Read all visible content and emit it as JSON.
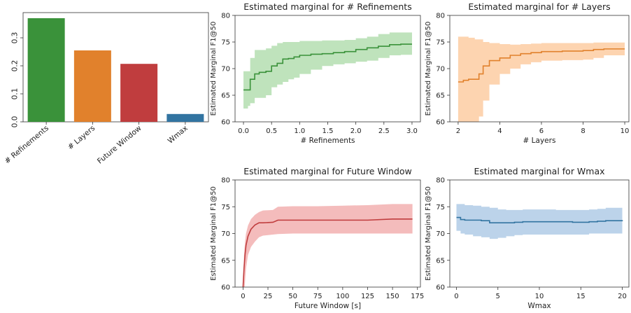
{
  "colors": {
    "green": "#3a923a",
    "orange": "#e1812c",
    "red": "#c03d3e",
    "blue": "#3274a1",
    "green_band": "#bfe3bc",
    "orange_band": "#fdd4b0",
    "red_band": "#f4bcbc",
    "blue_band": "#bcd3ea"
  },
  "chart_data": [
    {
      "type": "bar",
      "categories": [
        "# Refinements",
        "# Layers",
        "Future Window",
        "Wmax"
      ],
      "values": [
        0.37,
        0.255,
        0.207,
        0.028
      ],
      "colors": [
        "#3a923a",
        "#e1812c",
        "#c03d3e",
        "#3274a1"
      ],
      "ylim": [
        0,
        0.39
      ],
      "yticks": [
        0.0,
        0.1,
        0.2,
        0.3
      ],
      "yticklabels": [
        "0.0",
        "0.1",
        "0.2",
        "0.3"
      ],
      "title": "",
      "xlabel": "",
      "ylabel": ""
    },
    {
      "type": "line",
      "title": "Estimated marginal for # Refinements",
      "xlabel": "# Refinements",
      "ylabel": "Estimated Marginal F1@50",
      "xlim": [
        -0.15,
        3.15
      ],
      "ylim": [
        60,
        80
      ],
      "xticks": [
        0.0,
        0.5,
        1.0,
        1.5,
        2.0,
        2.5,
        3.0
      ],
      "xticklabels": [
        "0.0",
        "0.5",
        "1.0",
        "1.5",
        "2.0",
        "2.5",
        "3.0"
      ],
      "yticks": [
        60,
        65,
        70,
        75,
        80
      ],
      "yticklabels": [
        "60",
        "65",
        "70",
        "75",
        "80"
      ],
      "color": "green",
      "step": true,
      "x": [
        0.0,
        0.08,
        0.12,
        0.2,
        0.28,
        0.4,
        0.5,
        0.6,
        0.7,
        0.8,
        0.9,
        1.0,
        1.2,
        1.4,
        1.6,
        1.8,
        2.0,
        2.2,
        2.4,
        2.6,
        2.8,
        3.0
      ],
      "y": [
        66.0,
        66.0,
        68.0,
        69.0,
        69.3,
        69.5,
        70.5,
        71.0,
        71.8,
        71.9,
        72.2,
        72.5,
        72.7,
        72.8,
        73.0,
        73.2,
        73.6,
        73.9,
        74.2,
        74.5,
        74.6,
        74.6
      ],
      "lower": [
        62.5,
        63.0,
        63.5,
        64.5,
        64.5,
        65.0,
        66.5,
        67.0,
        67.5,
        68.0,
        68.3,
        69.0,
        69.8,
        70.5,
        70.8,
        71.0,
        71.3,
        71.5,
        72.0,
        72.5,
        72.6,
        72.6
      ],
      "upper": [
        69.5,
        69.5,
        72.0,
        73.5,
        73.5,
        73.8,
        74.3,
        74.8,
        75.0,
        75.0,
        75.0,
        75.2,
        75.2,
        75.3,
        75.3,
        75.4,
        75.7,
        76.0,
        76.5,
        76.8,
        76.8,
        76.8
      ]
    },
    {
      "type": "line",
      "title": "Estimated marginal for # Layers",
      "xlabel": "# Layers",
      "ylabel": "Estimated Marginal F1@50",
      "xlim": [
        1.6,
        10.2
      ],
      "ylim": [
        60,
        80
      ],
      "xticks": [
        2,
        4,
        6,
        8,
        10
      ],
      "xticklabels": [
        "2",
        "4",
        "6",
        "8",
        "10"
      ],
      "yticks": [
        60,
        65,
        70,
        75,
        80
      ],
      "yticklabels": [
        "60",
        "65",
        "70",
        "75",
        "80"
      ],
      "color": "orange",
      "step": true,
      "x": [
        2.0,
        2.25,
        2.5,
        2.8,
        3.0,
        3.2,
        3.5,
        4.0,
        4.5,
        5.0,
        5.5,
        6.0,
        7.0,
        8.0,
        8.5,
        9.0,
        10.0
      ],
      "y": [
        67.5,
        67.8,
        68.0,
        68.0,
        69.0,
        70.5,
        71.5,
        72.0,
        72.5,
        72.8,
        73.0,
        73.2,
        73.3,
        73.4,
        73.6,
        73.7,
        73.7
      ],
      "lower": [
        55.0,
        56.0,
        58.0,
        58.5,
        61.0,
        64.0,
        67.0,
        69.0,
        70.0,
        70.8,
        71.2,
        71.5,
        71.6,
        71.7,
        72.0,
        72.5,
        72.5
      ],
      "upper": [
        76.0,
        76.0,
        75.8,
        75.5,
        75.5,
        75.0,
        74.8,
        74.6,
        74.5,
        74.6,
        74.7,
        74.8,
        74.8,
        74.8,
        74.9,
        74.9,
        74.9
      ]
    },
    {
      "type": "line",
      "title": "Estimated marginal for Future Window",
      "xlabel": "Future Window [s]",
      "ylabel": "Estimated Marginal F1@50",
      "xlim": [
        -8,
        178
      ],
      "ylim": [
        60,
        80
      ],
      "xticks": [
        0,
        25,
        50,
        75,
        100,
        125,
        150,
        175
      ],
      "xticklabels": [
        "0",
        "25",
        "50",
        "75",
        "100",
        "125",
        "150",
        "175"
      ],
      "yticks": [
        60,
        65,
        70,
        75,
        80
      ],
      "yticklabels": [
        "60",
        "65",
        "70",
        "75",
        "80"
      ],
      "color": "red",
      "step": false,
      "x": [
        0,
        1,
        2,
        3,
        5,
        8,
        12,
        16,
        20,
        30,
        35,
        50,
        75,
        100,
        125,
        150,
        170
      ],
      "y": [
        60.0,
        63.5,
        66.0,
        67.8,
        69.5,
        70.8,
        71.6,
        72.0,
        72.0,
        72.1,
        72.5,
        72.5,
        72.5,
        72.5,
        72.5,
        72.7,
        72.7
      ],
      "lower": [
        55.0,
        58.0,
        61.0,
        63.5,
        66.0,
        67.5,
        68.5,
        69.3,
        69.6,
        69.8,
        69.9,
        70.0,
        70.0,
        70.0,
        70.0,
        70.0,
        70.0
      ],
      "upper": [
        60.0,
        66.0,
        68.5,
        70.0,
        71.5,
        72.7,
        73.5,
        74.0,
        74.3,
        74.4,
        75.0,
        75.1,
        75.1,
        75.2,
        75.3,
        75.5,
        75.5
      ]
    },
    {
      "type": "line",
      "title": "Estimated marginal for Wmax",
      "xlabel": "Wmax",
      "ylabel": "Estimated Marginal F1@50",
      "xlim": [
        -0.8,
        20.8
      ],
      "ylim": [
        60,
        80
      ],
      "xticks": [
        0,
        5,
        10,
        15,
        20
      ],
      "xticklabels": [
        "0",
        "5",
        "10",
        "15",
        "20"
      ],
      "yticks": [
        60,
        65,
        70,
        75,
        80
      ],
      "yticklabels": [
        "60",
        "65",
        "70",
        "75",
        "80"
      ],
      "color": "blue",
      "step": true,
      "x": [
        0,
        0.5,
        1,
        2,
        3,
        4,
        5,
        6,
        7,
        8,
        10,
        12,
        14,
        15,
        16,
        17,
        18,
        20
      ],
      "y": [
        73.0,
        72.6,
        72.5,
        72.5,
        72.4,
        72.0,
        72.0,
        72.0,
        72.1,
        72.2,
        72.2,
        72.2,
        72.1,
        72.1,
        72.2,
        72.3,
        72.4,
        72.5
      ],
      "lower": [
        70.5,
        70.0,
        69.8,
        69.5,
        69.3,
        69.0,
        69.2,
        69.5,
        69.7,
        69.8,
        69.8,
        69.8,
        69.8,
        69.8,
        70.0,
        70.0,
        70.0,
        70.1
      ],
      "upper": [
        75.5,
        75.5,
        75.3,
        75.2,
        75.0,
        74.8,
        74.5,
        74.4,
        74.4,
        74.5,
        74.5,
        74.4,
        74.4,
        74.4,
        74.5,
        74.6,
        74.8,
        75.0
      ]
    }
  ]
}
